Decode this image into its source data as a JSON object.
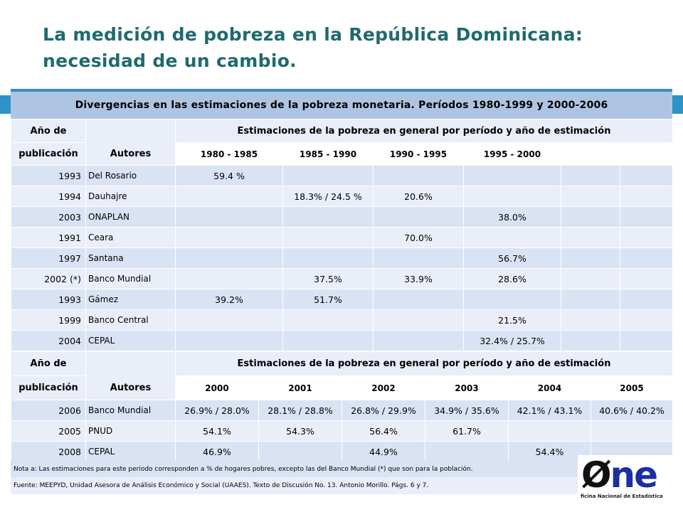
{
  "title": {
    "line1": "La medición de pobreza en la República Dominicana:",
    "line2": "necesidad de un cambio."
  },
  "table_title": "Divergencias en las estimaciones de la pobreza monetaria. Períodos 1980-1999 y 2000-2006",
  "section1": {
    "col_year_1": "Año de",
    "col_year_2": "publicación",
    "col_authors": "Autores",
    "col_estimates": "Estimaciones de la pobreza en general por período y año de estimación",
    "periods": [
      "1980 - 1985",
      "1985 - 1990",
      "1990 - 1995",
      "1995 - 2000",
      "",
      ""
    ],
    "rows": [
      {
        "year": "1993",
        "author": "Del Rosario",
        "c1": "59.4 %",
        "c2": "",
        "c3": "",
        "c4": ""
      },
      {
        "year": "1994",
        "author": "Dauhajre",
        "c1": "",
        "c2": "18.3% / 24.5 %",
        "c3": "20.6%",
        "c4": ""
      },
      {
        "year": "2003",
        "author": "ONAPLAN",
        "c1": "",
        "c2": "",
        "c3": "",
        "c4": "38.0%"
      },
      {
        "year": "1991",
        "author": "Ceara",
        "c1": "",
        "c2": "",
        "c3": "70.0%",
        "c4": ""
      },
      {
        "year": "1997",
        "author": "Santana",
        "c1": "",
        "c2": "",
        "c3": "",
        "c4": "56.7%"
      },
      {
        "year": "2002 (*)",
        "author": "Banco Mundial",
        "c1": "",
        "c2": "37.5%",
        "c3": "33.9%",
        "c4": "28.6%"
      },
      {
        "year": "1993",
        "author": "Gámez",
        "c1": "39.2%",
        "c2": "51.7%",
        "c3": "",
        "c4": ""
      },
      {
        "year": "1999",
        "author": "Banco Central",
        "c1": "",
        "c2": "",
        "c3": "",
        "c4": "21.5%"
      },
      {
        "year": "2004",
        "author": "CEPAL",
        "c1": "",
        "c2": "",
        "c3": "",
        "c4": "32.4% / 25.7%"
      }
    ]
  },
  "section2": {
    "col_year_1": "Año de",
    "col_year_2": "publicación",
    "col_authors": "Autores",
    "col_estimates": "Estimaciones de la pobreza en general por período y año de estimación",
    "years": [
      "2000",
      "2001",
      "2002",
      "2003",
      "2004",
      "2005"
    ],
    "rows": [
      {
        "year": "2006",
        "author": "Banco Mundial",
        "v": [
          "26.9% / 28.0%",
          "28.1% / 28.8%",
          "26.8% / 29.9%",
          "34.9% / 35.6%",
          "42.1% / 43.1%",
          "40.6% / 40.2%"
        ]
      },
      {
        "year": "2005",
        "author": "PNUD",
        "v": [
          "54.1%",
          "54.3%",
          "56.4%",
          "61.7%",
          "",
          ""
        ]
      },
      {
        "year": "2008",
        "author": "CEPAL",
        "v": [
          "46.9%",
          "",
          "44.9%",
          "",
          "54.4%",
          ""
        ]
      }
    ]
  },
  "notes": {
    "note_a": "Nota a: Las estimaciones para este periodo corresponden a % de hogares pobres, excepto las del Banco Mundial (*) que son para la población.",
    "source": "Fuente: MEEPYD, Unidad Asesora de Análisis Económico y Social (UAAES). Texto de Discusión No. 13. Antonio Morillo. Págs. 6 y 7."
  },
  "logo": {
    "mark_zero": "Ø",
    "mark_ne": "ne",
    "subtitle": "ficina Nacional de Estadística"
  },
  "colors": {
    "title": "#1f6a6e",
    "header_bar": "#3e89c5",
    "header_strip": "#aec5e2",
    "row_odd": "#dae3f3",
    "row_even": "#e9eef8",
    "logo_blue": "#1a2fa0"
  }
}
